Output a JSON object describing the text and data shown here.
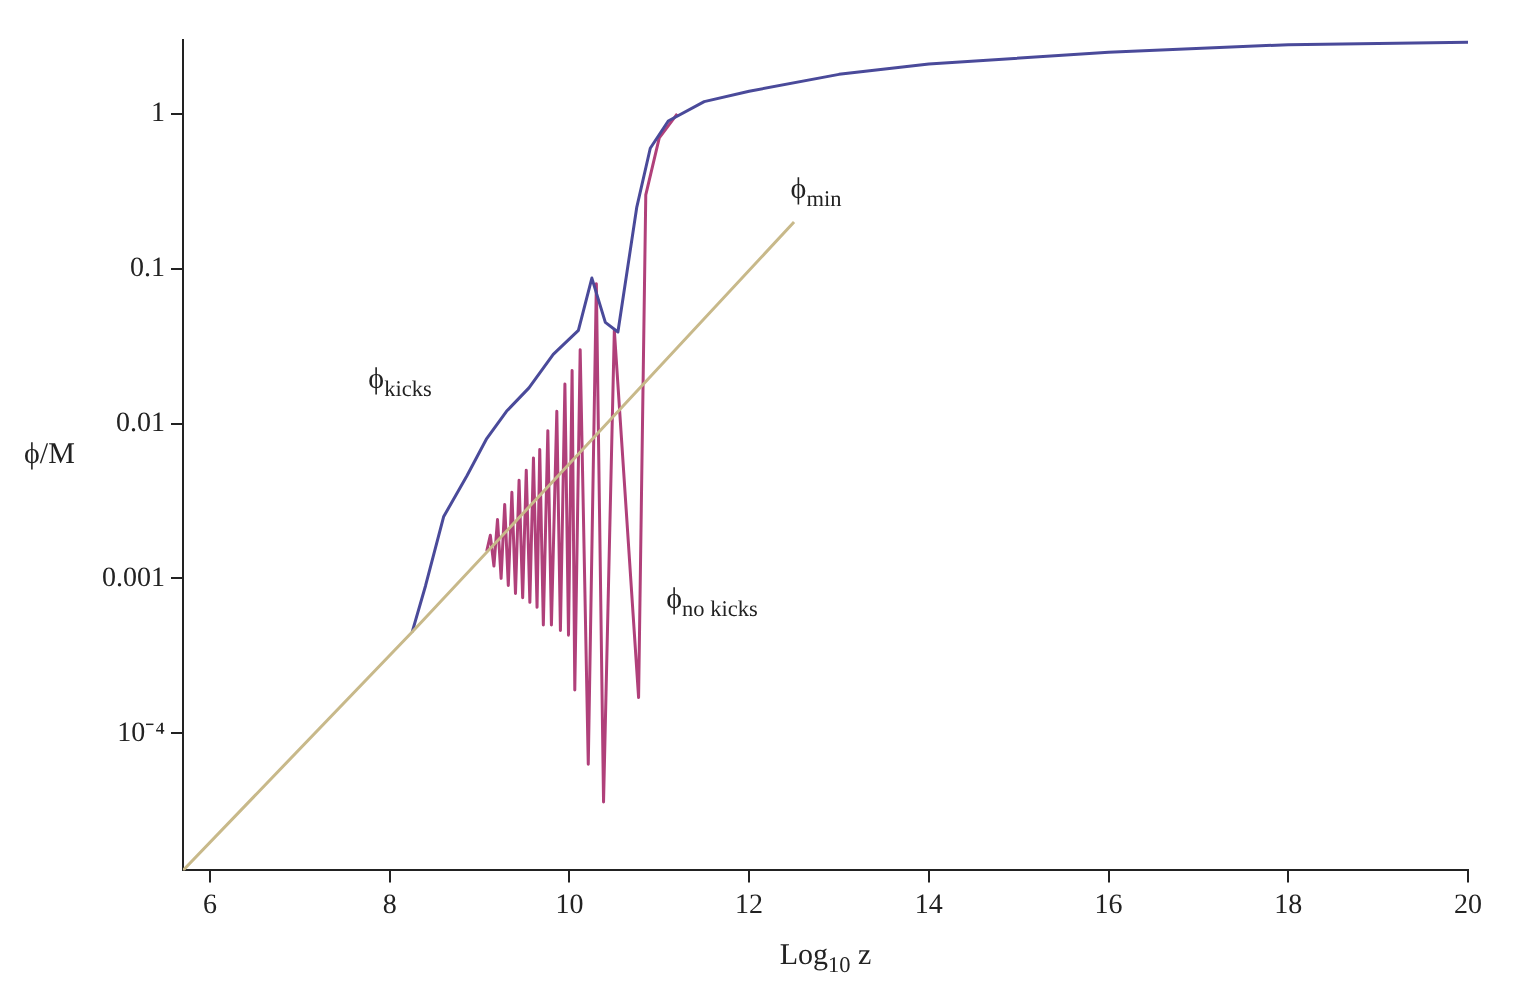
{
  "chart_data": {
    "type": "line",
    "xlabel": "Log$_{10}$ z",
    "ylabel": "ϕ/M",
    "log": "y",
    "grid": false,
    "legend": false,
    "marker": "none",
    "line_style": "solid",
    "xlim": [
      5.7,
      20
    ],
    "xticks": [
      6,
      8,
      10,
      12,
      14,
      16,
      18,
      20
    ],
    "ylim": [
      1.3e-05,
      3
    ],
    "yticks": [
      {
        "value": 0.0001,
        "label": "10⁻⁴"
      },
      0.001,
      0.01,
      0.1,
      1
    ],
    "series": [
      {
        "name": "ϕ$_{min}$",
        "color": "#c8b98a",
        "x": [
          5.7,
          8.25,
          10,
          12.5
        ],
        "values": [
          1.3e-05,
          0.00045,
          0.0055,
          0.2
        ]
      },
      {
        "name": "ϕ$_{kicks}$",
        "color": "#4a4a9a",
        "x": [
          8.25,
          8.4,
          8.6,
          8.86,
          9.08,
          9.3,
          9.55,
          9.82,
          10.1,
          10.25,
          10.4,
          10.54,
          10.75,
          10.9,
          11.1,
          11.5,
          12,
          13,
          14,
          16,
          18,
          20
        ],
        "values": [
          0.00045,
          0.0009,
          0.0025,
          0.0046,
          0.008,
          0.012,
          0.017,
          0.028,
          0.04,
          0.087,
          0.045,
          0.039,
          0.25,
          0.6,
          0.9,
          1.2,
          1.4,
          1.8,
          2.1,
          2.5,
          2.8,
          2.9
        ]
      },
      {
        "name": "ϕ$_{no kicks}$",
        "color": "#b0407a",
        "x": [
          9.08,
          9.12,
          9.16,
          9.2,
          9.24,
          9.28,
          9.32,
          9.36,
          9.4,
          9.44,
          9.48,
          9.52,
          9.56,
          9.6,
          9.64,
          9.67,
          9.71,
          9.76,
          9.8,
          9.86,
          9.9,
          9.95,
          9.99,
          10.03,
          10.06,
          10.12,
          10.21,
          10.3,
          10.38,
          10.5,
          10.77,
          10.85,
          11,
          11.2
        ],
        "values": [
          0.0015,
          0.0019,
          0.0012,
          0.0024,
          0.001,
          0.003,
          0.0009,
          0.0036,
          0.0008,
          0.0043,
          0.00075,
          0.005,
          0.0007,
          0.006,
          0.00065,
          0.0068,
          0.0005,
          0.009,
          0.0005,
          0.012,
          0.00046,
          0.018,
          0.00043,
          0.022,
          0.00019,
          0.03,
          6.3e-05,
          0.08,
          3.6e-05,
          0.04,
          0.00017,
          0.3,
          0.7,
          1.0
        ]
      }
    ]
  }
}
